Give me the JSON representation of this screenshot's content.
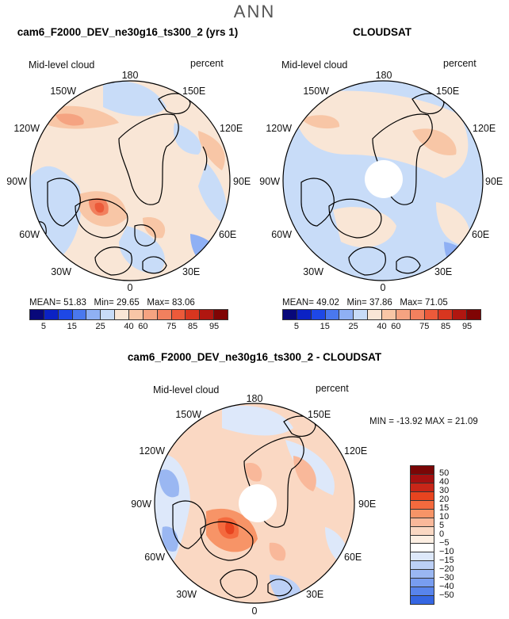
{
  "figure": {
    "title": "ANN"
  },
  "panels": [
    {
      "title": "cam6_F2000_DEV_ne30g16_ts300_2 (yrs 1)",
      "variable": "Mid-level cloud",
      "units": "percent",
      "stats": {
        "mean_label": "MEAN=",
        "mean": "51.83",
        "min_label": "Min=",
        "min": "29.65",
        "max_label": "Max=",
        "max": "83.06"
      },
      "lon_labels": [
        "180",
        "150E",
        "120E",
        "90E",
        "60E",
        "30E",
        "0",
        "30W",
        "60W",
        "90W",
        "120W",
        "150W"
      ],
      "colorbar_ticks": [
        "5",
        "15",
        "25",
        "40",
        "60",
        "75",
        "85",
        "95"
      ]
    },
    {
      "title": "CLOUDSAT",
      "variable": "Mid-level cloud",
      "units": "percent",
      "stats": {
        "mean_label": "MEAN=",
        "mean": "49.02",
        "min_label": "Min=",
        "min": "37.86",
        "max_label": "Max=",
        "max": "71.05"
      },
      "lon_labels": [
        "180",
        "150E",
        "120E",
        "90E",
        "60E",
        "30E",
        "0",
        "30W",
        "60W",
        "90W",
        "120W",
        "150W"
      ],
      "colorbar_ticks": [
        "5",
        "15",
        "25",
        "40",
        "60",
        "75",
        "85",
        "95"
      ]
    },
    {
      "title": "cam6_F2000_DEV_ne30g16_ts300_2 - CLOUDSAT",
      "variable": "Mid-level cloud",
      "units": "percent",
      "stats_text": "MIN = -13.92  MAX =  21.09",
      "lon_labels": [
        "180",
        "150E",
        "120E",
        "90E",
        "60E",
        "30E",
        "0",
        "30W",
        "60W",
        "90W",
        "120W",
        "150W"
      ],
      "colorbar_ticks": [
        "50",
        "40",
        "30",
        "20",
        "15",
        "10",
        "5",
        "0",
        "−5",
        "−10",
        "−15",
        "−20",
        "−30",
        "−40",
        "−50"
      ]
    }
  ],
  "colors": {
    "abs_scale": [
      "#08087a",
      "#0b22c4",
      "#1e48e6",
      "#4a78ee",
      "#8fb0f4",
      "#c8dcf8",
      "#f9e6d6",
      "#f8c6a6",
      "#f5a381",
      "#f2805e",
      "#ec5a3a",
      "#d8361f",
      "#b01610",
      "#800404"
    ],
    "diff_scale": [
      "#7a0606",
      "#a51010",
      "#c82618",
      "#e8441f",
      "#f46a3e",
      "#f79467",
      "#f9b89a",
      "#fad8c3",
      "#fdefe3",
      "#ffffff",
      "#dde8fa",
      "#bcd0f6",
      "#9ab7f2",
      "#789df0",
      "#5884ec",
      "#3566e2",
      "#1446d8",
      "#0a2cb8",
      "#041a8e",
      "#020c66"
    ],
    "land_outline": "#000000"
  }
}
